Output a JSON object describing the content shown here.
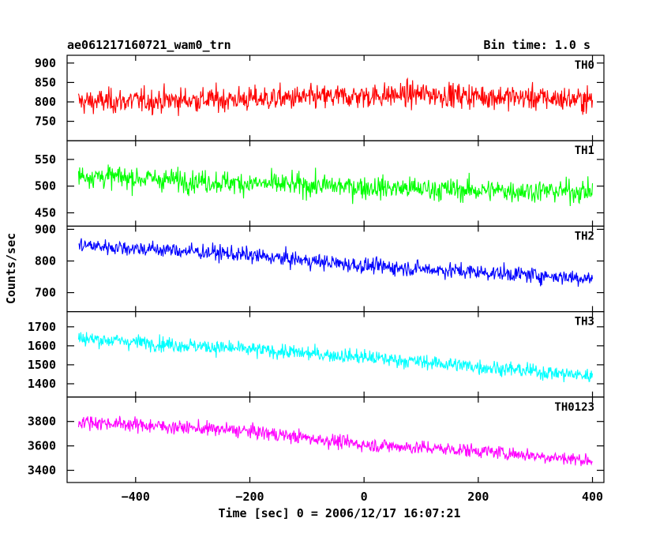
{
  "header": {
    "left_title": "ae061217160721_wam0_trn",
    "right_title": "Bin time: 1.0 s"
  },
  "axes": {
    "xlabel": "Time [sec] 0 = 2006/12/17 16:07:21",
    "ylabel": "Counts/sec"
  },
  "chart_data": {
    "type": "line",
    "x": {
      "start": -500,
      "end": 400,
      "step": 1
    },
    "xlim": [
      -520,
      420
    ],
    "xticks": [
      -400,
      -200,
      0,
      200,
      400
    ],
    "xtick_labels": [
      "−400",
      "−200",
      "0",
      "200",
      "400"
    ],
    "series": [
      {
        "name": "TH0",
        "color": "#ff0000",
        "ylim": [
          700,
          920
        ],
        "yticks": [
          750,
          800,
          850,
          900
        ],
        "trend": [
          [
            -500,
            800
          ],
          [
            -100,
            810
          ],
          [
            0,
            815
          ],
          [
            100,
            820
          ],
          [
            400,
            805
          ]
        ],
        "noise": 45
      },
      {
        "name": "TH1",
        "color": "#00ff00",
        "ylim": [
          425,
          585
        ],
        "yticks": [
          450,
          500,
          550
        ],
        "trend": [
          [
            -500,
            520
          ],
          [
            -200,
            505
          ],
          [
            0,
            498
          ],
          [
            200,
            492
          ],
          [
            400,
            490
          ]
        ],
        "noise": 30
      },
      {
        "name": "TH2",
        "color": "#0000ff",
        "ylim": [
          640,
          910
        ],
        "yticks": [
          700,
          800,
          900
        ],
        "trend": [
          [
            -500,
            850
          ],
          [
            -250,
            825
          ],
          [
            0,
            785
          ],
          [
            200,
            765
          ],
          [
            400,
            745
          ]
        ],
        "noise": 35
      },
      {
        "name": "TH3",
        "color": "#00ffff",
        "ylim": [
          1330,
          1780
        ],
        "yticks": [
          1400,
          1500,
          1600,
          1700
        ],
        "trend": [
          [
            -500,
            1640
          ],
          [
            -300,
            1600
          ],
          [
            0,
            1540
          ],
          [
            200,
            1490
          ],
          [
            400,
            1440
          ]
        ],
        "noise": 55
      },
      {
        "name": "TH0123",
        "color": "#ff00ff",
        "ylim": [
          3300,
          4000
        ],
        "yticks": [
          3400,
          3600,
          3800
        ],
        "trend": [
          [
            -500,
            3800
          ],
          [
            -200,
            3720
          ],
          [
            0,
            3610
          ],
          [
            200,
            3560
          ],
          [
            400,
            3480
          ]
        ],
        "noise": 80
      }
    ],
    "grid": false,
    "legend": "panel labels top-right"
  }
}
